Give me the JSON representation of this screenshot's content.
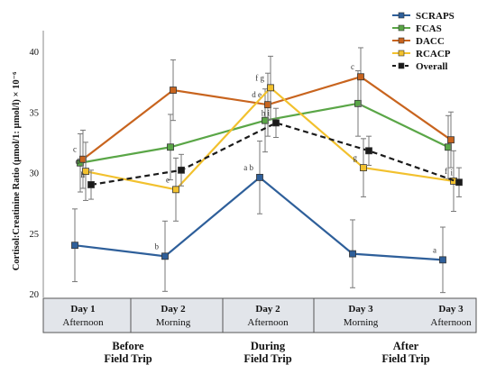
{
  "chart_data": {
    "type": "line",
    "title": "",
    "ylabel": "Cortisol:Creatinine Ratio (µmol/1: µmol/l) × 10⁻⁶",
    "xlabel": "",
    "ylim": [
      20,
      42
    ],
    "yticks": [
      20,
      25,
      30,
      35,
      40
    ],
    "grid": false,
    "legend_position": "top-right",
    "categories": [
      {
        "day": "Day 1",
        "time": "Afternoon"
      },
      {
        "day": "Day 2",
        "time": "Morning"
      },
      {
        "day": "Day 2",
        "time": "Afternoon"
      },
      {
        "day": "Day 3",
        "time": "Morning"
      },
      {
        "day": "Day 3",
        "time": "Afternoon"
      }
    ],
    "groups": [
      {
        "label": "Before\nField Trip",
        "categories": [
          0,
          1
        ]
      },
      {
        "label": "During\nField Trip",
        "categories": [
          2
        ]
      },
      {
        "label": "After\nField Trip",
        "categories": [
          3,
          4
        ]
      }
    ],
    "series": [
      {
        "name": "SCRAPS",
        "color": "#2e5f9a",
        "dashed": false,
        "values": [
          24.0,
          23.1,
          29.6,
          23.3,
          22.8
        ],
        "errors": [
          3.0,
          2.9,
          3.0,
          2.8,
          2.7
        ],
        "labels": [
          "",
          "b",
          "a b",
          "",
          "a"
        ]
      },
      {
        "name": "FCAS",
        "color": "#5aa647",
        "dashed": false,
        "values": [
          30.8,
          32.1,
          34.3,
          35.7,
          32.1
        ],
        "errors": [
          2.4,
          2.7,
          2.6,
          2.7,
          2.6
        ],
        "labels": [
          "",
          "",
          "",
          "",
          ""
        ]
      },
      {
        "name": "DACC",
        "color": "#c8641e",
        "dashed": false,
        "values": [
          31.1,
          36.8,
          35.6,
          37.9,
          32.7
        ],
        "errors": [
          2.4,
          2.5,
          2.6,
          2.4,
          2.3
        ],
        "labels": [
          "c",
          "",
          "d e",
          "c",
          ""
        ]
      },
      {
        "name": "RCACP",
        "color": "#f2c12e",
        "dashed": false,
        "values": [
          30.1,
          28.6,
          37.0,
          30.4,
          29.3
        ],
        "errors": [
          2.4,
          2.6,
          2.6,
          2.4,
          2.5
        ],
        "labels": [
          "d",
          "e",
          "f g",
          "g",
          "f"
        ]
      },
      {
        "name": "Overall",
        "color": "#1a1a1a",
        "dashed": true,
        "values": [
          29.0,
          30.2,
          34.1,
          31.8,
          29.2
        ],
        "errors": [
          1.2,
          1.3,
          1.2,
          1.2,
          1.2
        ],
        "labels": [
          "h",
          "",
          "h i",
          "",
          "i"
        ]
      }
    ]
  }
}
